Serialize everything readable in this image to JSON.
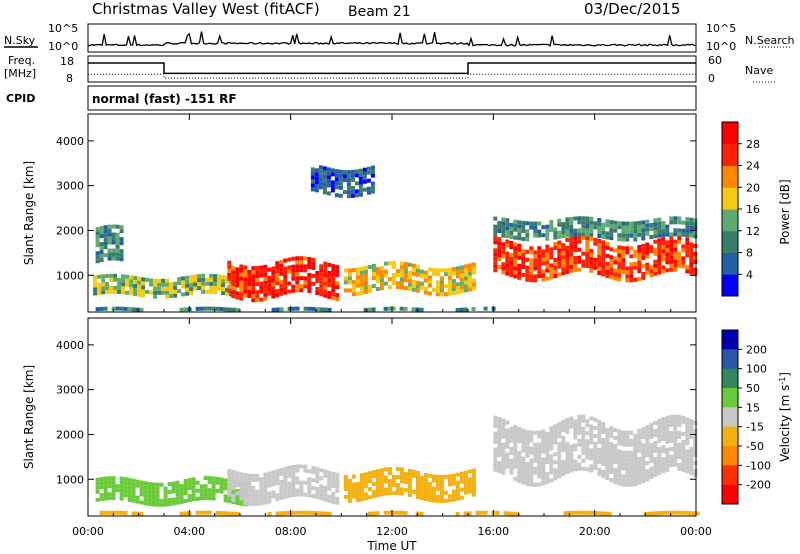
{
  "header": {
    "station": "Christmas Valley West (fitACF)",
    "beam": "Beam 21",
    "date": "03/Dec/2015"
  },
  "top_panels": {
    "nsky_label": "N.Sky",
    "nsearch_label": "N.Search",
    "nsky_ticks": [
      "10^5",
      "10^0"
    ],
    "nsearch_ticks": [
      "10^5",
      "10^0"
    ],
    "freq_label_1": "Freq.",
    "freq_label_2": "[MHz]",
    "freq_ticks": [
      "18",
      "8"
    ],
    "nave_label": "Nave",
    "nave_ticks": [
      "60",
      "0"
    ],
    "cpid_label": "CPID",
    "cpid_text": "normal (fast) -151 RF"
  },
  "chart_data": [
    {
      "type": "line",
      "name": "N.Sky / N.Search",
      "x": [
        "00:00",
        "04:00",
        "08:00",
        "12:00",
        "16:00",
        "20:00",
        "00:00"
      ],
      "ylim_log10": [
        0,
        5
      ],
      "series": [
        {
          "name": "N.Sky",
          "level_log10": 1.0
        },
        {
          "name": "N.Search",
          "level_log10": 1.0
        }
      ]
    },
    {
      "type": "line",
      "name": "Freq / Nave",
      "x_hours": [
        0,
        3,
        3,
        15,
        15,
        24
      ],
      "series": [
        {
          "name": "Freq. [MHz]",
          "values": [
            15.3,
            15.3,
            11.3,
            11.3,
            15.3,
            15.3
          ],
          "ylim": [
            8,
            18
          ]
        },
        {
          "name": "Nave",
          "values": [
            18,
            18,
            9,
            9,
            18,
            18
          ],
          "ylim": [
            0,
            60
          ]
        }
      ]
    },
    {
      "type": "heatmap",
      "name": "Power",
      "xlabel": "",
      "ylabel": "Slant Range [km]",
      "x_ticks": [
        "00:00",
        "04:00",
        "08:00",
        "12:00",
        "16:00",
        "20:00",
        "00:00"
      ],
      "y_ticks": [
        "1000",
        "2000",
        "3000",
        "4000"
      ],
      "ylim": [
        180,
        4600
      ],
      "colorbar_label": "Power [dB]",
      "colorbar_ticks": [
        "4",
        "8",
        "12",
        "16",
        "20",
        "24",
        "28"
      ],
      "colorbar_colors": [
        "#0000ff",
        "#2060a8",
        "#3a7c6a",
        "#5faa70",
        "#f4ca12",
        "#ff8800",
        "#ff2200",
        "#ff0000"
      ],
      "features": [
        {
          "t0": 0.3,
          "t1": 16.0,
          "r0": 190,
          "r1": 330,
          "power": 10
        },
        {
          "t0": 0.3,
          "t1": 1.3,
          "r0": 1300,
          "r1": 2100,
          "power": 10
        },
        {
          "t0": 0.2,
          "t1": 6.0,
          "r0": 620,
          "r1": 1000,
          "power": 15
        },
        {
          "t0": 5.5,
          "t1": 9.8,
          "r0": 600,
          "r1": 1350,
          "power": 27
        },
        {
          "t0": 10.1,
          "t1": 15.2,
          "r0": 700,
          "r1": 1250,
          "power": 19
        },
        {
          "t0": 16.0,
          "t1": 24.0,
          "r0": 1050,
          "r1": 1850,
          "power": 26
        },
        {
          "t0": 16.0,
          "t1": 24.0,
          "r0": 1900,
          "r1": 2300,
          "power": 11
        },
        {
          "t0": 8.8,
          "t1": 11.3,
          "r0": 2900,
          "r1": 3500,
          "power": 7
        }
      ]
    },
    {
      "type": "heatmap",
      "name": "Velocity",
      "xlabel": "Time UT",
      "ylabel": "Slant Range [km]",
      "x_ticks": [
        "00:00",
        "04:00",
        "08:00",
        "12:00",
        "16:00",
        "20:00",
        "00:00"
      ],
      "y_ticks": [
        "1000",
        "2000",
        "3000",
        "4000"
      ],
      "ylim": [
        180,
        4600
      ],
      "colorbar_label": "Velocity [m s-1]",
      "colorbar_ticks": [
        "200",
        "100",
        "50",
        "15",
        "-15",
        "-50",
        "-100",
        "-200"
      ],
      "colorbar_colors": [
        "#0000b0",
        "#2a55a8",
        "#2e8a5a",
        "#6acb3a",
        "#c8c8c8",
        "#f4b010",
        "#ff8800",
        "#ff3000",
        "#ff0000"
      ],
      "features": [
        {
          "t0": 0.3,
          "t1": 6.2,
          "r0": 550,
          "r1": 1050,
          "velocity": 30
        },
        {
          "t0": 5.5,
          "t1": 9.8,
          "r0": 600,
          "r1": 1300,
          "velocity": 0
        },
        {
          "t0": 10.1,
          "t1": 15.2,
          "r0": 650,
          "r1": 1250,
          "velocity": -30
        },
        {
          "t0": 16.0,
          "t1": 24.0,
          "r0": 1100,
          "r1": 2300,
          "velocity": 0
        },
        {
          "t0": 0.3,
          "t1": 24.0,
          "r0": 190,
          "r1": 320,
          "velocity": -30
        }
      ]
    }
  ],
  "colors": {
    "frame": "#000000",
    "background": "#ffffff"
  }
}
